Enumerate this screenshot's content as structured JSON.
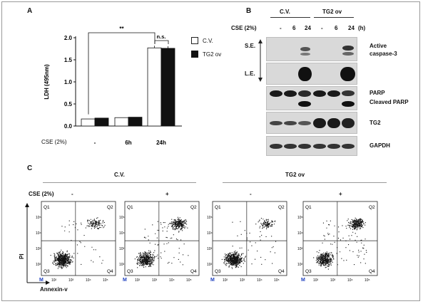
{
  "panels": {
    "a": "A",
    "b": "B",
    "c": "C"
  },
  "chart_data": {
    "type": "bar",
    "ylabel": "LDH (495nm)",
    "ylim": [
      0,
      2.0
    ],
    "yticks": [
      "0.0",
      "0.5",
      "1.0",
      "1.5",
      "2.0"
    ],
    "categories": [
      "-",
      "6h",
      "24h"
    ],
    "treatment_label": "CSE (2%)",
    "series": [
      {
        "name": "C.V.",
        "values": [
          0.16,
          0.19,
          1.77
        ],
        "color": "#ffffff"
      },
      {
        "name": "TG2 ov",
        "values": [
          0.18,
          0.2,
          1.76
        ],
        "color": "#111111"
      }
    ],
    "significance": [
      {
        "label": "**"
      },
      {
        "label": "n.s."
      }
    ]
  },
  "blot": {
    "groups": [
      "C.V.",
      "TG2 ov"
    ],
    "treatment_label": "CSE (2%)",
    "unit": "(h)",
    "lanes": [
      "-",
      "6",
      "24",
      "-",
      "6",
      "24"
    ],
    "exposures": [
      "S.E.",
      "L.E."
    ],
    "proteins": [
      "Active caspase-3",
      "PARP",
      "Cleaved PARP",
      "TG2",
      "GAPDH"
    ],
    "caspase_line1": "Active",
    "caspase_line2": "caspase-3"
  },
  "flow": {
    "groups": [
      "C.V.",
      "TG2 ov"
    ],
    "treatment_label": "CSE (2%)",
    "conditions": [
      "-",
      "+",
      "-",
      "+"
    ],
    "quadrants": [
      "Q1",
      "Q2",
      "Q3",
      "Q4"
    ],
    "ylabel": "PI",
    "xlabel": "Annexin-v",
    "marker": "M",
    "ticks": [
      "10²",
      "10³",
      "10⁴",
      "10⁵"
    ]
  }
}
